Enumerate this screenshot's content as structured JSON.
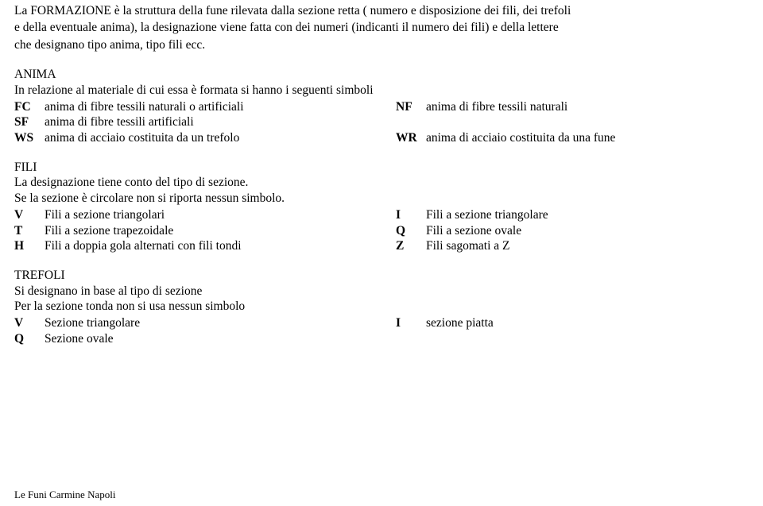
{
  "intro": {
    "p1a": "La FORMAZIONE è la struttura della fune rilevata dalla sezione retta ( numero e disposizione dei fili, dei trefoli",
    "p1b": "e della eventuale anima), la designazione  viene fatta con dei numeri  (indicanti il numero dei fili) e della lettere",
    "p1c": "che designano tipo anima, tipo fili ecc."
  },
  "anima": {
    "title": "ANIMA",
    "sub": "In relazione al materiale di cui essa è formata  si hanno i seguenti simboli",
    "left": [
      {
        "code": "FC",
        "desc": "anima di fibre tessili naturali o  artificiali"
      },
      {
        "code": "SF",
        "desc": "anima di fibre tessili artificiali"
      },
      {
        "code": "WS",
        "desc": "anima di acciaio costituita da un trefolo"
      }
    ],
    "right": [
      {
        "code": "NF",
        "desc": "anima di fibre tessili naturali"
      },
      {
        "code": "",
        "desc": ""
      },
      {
        "code": "WR",
        "desc": "anima di acciaio costituita da una fune"
      }
    ]
  },
  "fili": {
    "title": "FILI",
    "p1": "La designazione tiene conto del tipo di sezione.",
    "p2": "Se la sezione è circolare non si riporta nessun simbolo.",
    "left": [
      {
        "code": "V",
        "desc": "Fili a sezione triangolari"
      },
      {
        "code": "T",
        "desc": "Fili a sezione trapezoidale"
      },
      {
        "code": "H",
        "desc": "Fili a doppia gola alternati con fili tondi"
      }
    ],
    "right": [
      {
        "code": "I",
        "desc": "Fili a sezione triangolare"
      },
      {
        "code": "Q",
        "desc": "Fili a sezione ovale"
      },
      {
        "code": "Z",
        "desc": "Fili sagomati a Z"
      }
    ]
  },
  "trefoli": {
    "title": "TREFOLI",
    "p1": "Si designano in base al tipo di sezione",
    "p2": "Per la sezione tonda non si usa nessun simbolo",
    "left": [
      {
        "code": "V",
        "desc": "Sezione triangolare"
      },
      {
        "code": "Q",
        "desc": "Sezione ovale"
      }
    ],
    "right": [
      {
        "code": "I",
        "desc": "sezione piatta"
      },
      {
        "code": "",
        "desc": ""
      }
    ]
  },
  "footer": "Le Funi Carmine Napoli"
}
